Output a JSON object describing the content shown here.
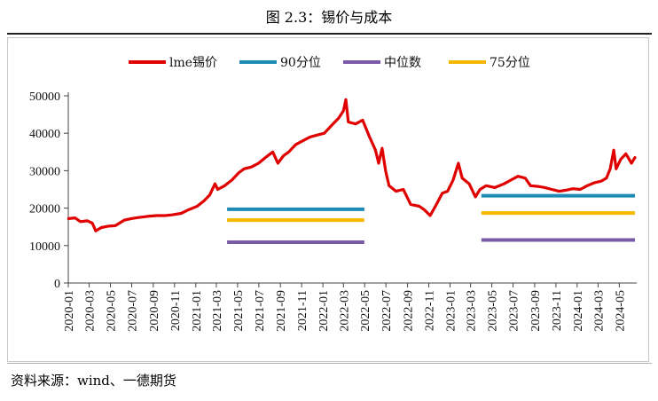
{
  "figure_title": "图 2.3：锡价与成本",
  "source_note": "资料来源：wind、一德期货",
  "chart_data": {
    "type": "line",
    "title": "",
    "xlabel": "",
    "ylabel": "",
    "ylim": [
      0,
      50000
    ],
    "y_ticks": [
      0,
      10000,
      20000,
      30000,
      40000,
      50000
    ],
    "x_ticks": [
      "2020-01",
      "2020-03",
      "2020-05",
      "2020-07",
      "2020-09",
      "2020-11",
      "2021-01",
      "2021-03",
      "2021-05",
      "2021-07",
      "2021-09",
      "2021-11",
      "2022-01",
      "2022-03",
      "2022-05",
      "2022-07",
      "2022-09",
      "2022-11",
      "2023-01",
      "2023-03",
      "2023-05",
      "2023-07",
      "2023-09",
      "2023-11",
      "2024-01",
      "2024-03",
      "2024-05"
    ],
    "legend_position": "top",
    "grid": false,
    "series": [
      {
        "name": "lme锡价",
        "color": "#e00000",
        "points": [
          [
            "2020-01-02",
            17200
          ],
          [
            "2020-01-20",
            17400
          ],
          [
            "2020-02-05",
            16400
          ],
          [
            "2020-02-25",
            16600
          ],
          [
            "2020-03-10",
            16000
          ],
          [
            "2020-03-20",
            13900
          ],
          [
            "2020-04-05",
            14800
          ],
          [
            "2020-04-25",
            15200
          ],
          [
            "2020-05-15",
            15300
          ],
          [
            "2020-06-10",
            16800
          ],
          [
            "2020-06-30",
            17200
          ],
          [
            "2020-07-20",
            17500
          ],
          [
            "2020-08-15",
            17800
          ],
          [
            "2020-09-10",
            18000
          ],
          [
            "2020-10-05",
            18000
          ],
          [
            "2020-10-25",
            18200
          ],
          [
            "2020-11-20",
            18600
          ],
          [
            "2020-12-10",
            19500
          ],
          [
            "2021-01-05",
            20500
          ],
          [
            "2021-01-25",
            22000
          ],
          [
            "2021-02-10",
            23500
          ],
          [
            "2021-02-25",
            26500
          ],
          [
            "2021-03-05",
            25000
          ],
          [
            "2021-03-25",
            26000
          ],
          [
            "2021-04-15",
            27500
          ],
          [
            "2021-05-05",
            29500
          ],
          [
            "2021-05-20",
            30500
          ],
          [
            "2021-06-10",
            31000
          ],
          [
            "2021-06-30",
            32000
          ],
          [
            "2021-07-20",
            33500
          ],
          [
            "2021-08-10",
            35000
          ],
          [
            "2021-08-25",
            32000
          ],
          [
            "2021-09-10",
            34000
          ],
          [
            "2021-09-25",
            35000
          ],
          [
            "2021-10-15",
            37000
          ],
          [
            "2021-11-05",
            38000
          ],
          [
            "2021-11-25",
            39000
          ],
          [
            "2021-12-15",
            39500
          ],
          [
            "2022-01-05",
            40000
          ],
          [
            "2022-01-25",
            42000
          ],
          [
            "2022-02-15",
            44000
          ],
          [
            "2022-03-01",
            46000
          ],
          [
            "2022-03-08",
            49000
          ],
          [
            "2022-03-15",
            43000
          ],
          [
            "2022-04-05",
            42500
          ],
          [
            "2022-04-25",
            43500
          ],
          [
            "2022-05-15",
            39000
          ],
          [
            "2022-06-01",
            35500
          ],
          [
            "2022-06-10",
            32000
          ],
          [
            "2022-06-20",
            36000
          ],
          [
            "2022-06-30",
            30000
          ],
          [
            "2022-07-10",
            26000
          ],
          [
            "2022-07-30",
            24500
          ],
          [
            "2022-08-20",
            25000
          ],
          [
            "2022-09-10",
            21000
          ],
          [
            "2022-10-05",
            20500
          ],
          [
            "2022-10-20",
            19500
          ],
          [
            "2022-11-05",
            18000
          ],
          [
            "2022-11-20",
            20500
          ],
          [
            "2022-12-10",
            24000
          ],
          [
            "2022-12-25",
            24500
          ],
          [
            "2023-01-10",
            27500
          ],
          [
            "2023-01-25",
            32000
          ],
          [
            "2023-02-05",
            28000
          ],
          [
            "2023-02-25",
            26500
          ],
          [
            "2023-03-15",
            23000
          ],
          [
            "2023-03-28",
            25000
          ],
          [
            "2023-04-15",
            26000
          ],
          [
            "2023-05-10",
            25500
          ],
          [
            "2023-06-05",
            26500
          ],
          [
            "2023-06-25",
            27500
          ],
          [
            "2023-07-15",
            28500
          ],
          [
            "2023-08-05",
            28000
          ],
          [
            "2023-08-20",
            26000
          ],
          [
            "2023-09-10",
            25800
          ],
          [
            "2023-09-30",
            25500
          ],
          [
            "2023-10-20",
            25000
          ],
          [
            "2023-11-10",
            24500
          ],
          [
            "2023-12-01",
            24800
          ],
          [
            "2023-12-20",
            25200
          ],
          [
            "2024-01-10",
            25000
          ],
          [
            "2024-01-30",
            26000
          ],
          [
            "2024-02-20",
            26800
          ],
          [
            "2024-03-10",
            27200
          ],
          [
            "2024-03-25",
            28000
          ],
          [
            "2024-04-05",
            30500
          ],
          [
            "2024-04-15",
            35500
          ],
          [
            "2024-04-22",
            30500
          ],
          [
            "2024-05-05",
            33000
          ],
          [
            "2024-05-20",
            34500
          ],
          [
            "2024-06-05",
            32000
          ],
          [
            "2024-06-15",
            33500
          ]
        ]
      },
      {
        "name": "90分位",
        "color": "#1f8ab5",
        "segments": [
          {
            "from": "2021-04-01",
            "to": "2022-04-30",
            "value": 19700
          },
          {
            "from": "2023-04-01",
            "to": "2024-06-15",
            "value": 23300
          }
        ]
      },
      {
        "name": "中位数",
        "color": "#7a5aa8",
        "segments": [
          {
            "from": "2021-04-01",
            "to": "2022-04-30",
            "value": 10900
          },
          {
            "from": "2023-04-01",
            "to": "2024-06-15",
            "value": 11500
          }
        ]
      },
      {
        "name": "75分位",
        "color": "#f5b800",
        "segments": [
          {
            "from": "2021-04-01",
            "to": "2022-04-30",
            "value": 16800
          },
          {
            "from": "2023-04-01",
            "to": "2024-06-15",
            "value": 18700
          }
        ]
      }
    ]
  }
}
